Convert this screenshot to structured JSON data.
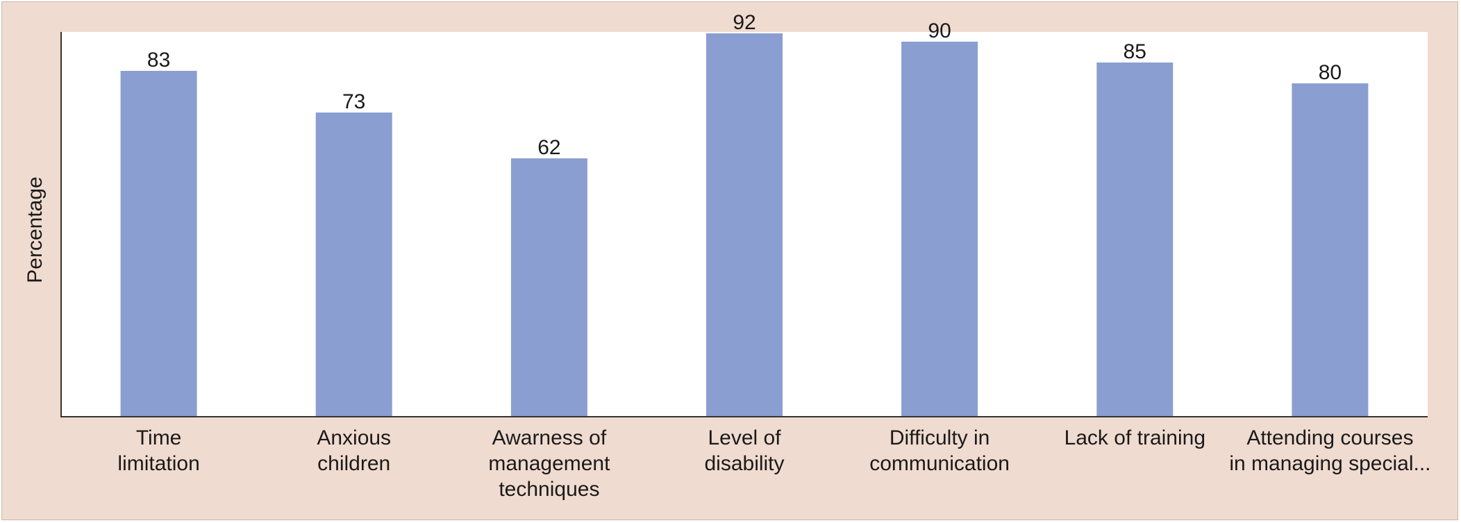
{
  "chart_data": {
    "type": "bar",
    "title": "",
    "xlabel": "",
    "ylabel": "Percentage",
    "ylim": [
      0,
      100
    ],
    "grid": false,
    "categories": [
      [
        "Time",
        "limitation"
      ],
      [
        "Anxious",
        "children"
      ],
      [
        "Awarness of",
        "management",
        "techniques"
      ],
      [
        "Level of",
        "disability"
      ],
      [
        "Difficulty in",
        "communication"
      ],
      [
        "Lack of training"
      ],
      [
        "Attending courses",
        "in managing special..."
      ]
    ],
    "values": [
      83,
      73,
      62,
      92,
      90,
      85,
      80
    ],
    "colors": {
      "bar": "#8a9ed1",
      "background": "#f0dbd0",
      "plot_area": "#ffffff",
      "axis": "#333333"
    }
  }
}
